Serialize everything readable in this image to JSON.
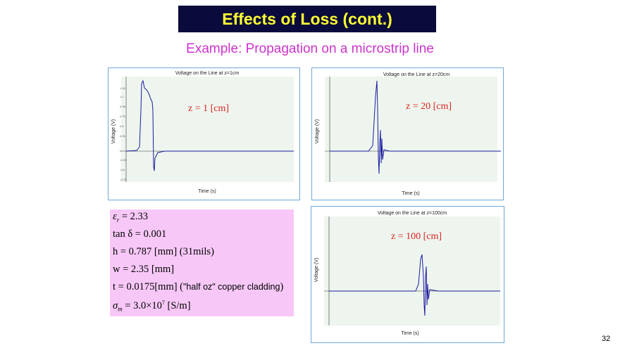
{
  "slide": {
    "title": "Effects of Loss (cont.)",
    "subtitle": "Example: Propagation on a microstrip line",
    "page_number": "32"
  },
  "plots": [
    {
      "title": "Voltage on the Line at z=1cm",
      "ylabel": "Voltage (V)",
      "xlabel": "Time (s)",
      "z_label": "z = 1 [cm]",
      "color": "#1a1aa0"
    },
    {
      "title": "Voltage on the Line at z=20cm",
      "ylabel": "Voltage (V)",
      "xlabel": "Time (s)",
      "z_label": "z = 20 [cm]",
      "color": "#1a1aa0"
    },
    {
      "title": "Voltage on the Line at z=100cm",
      "ylabel": "Voltage (V)",
      "xlabel": "Time (s)",
      "z_label": "z = 100 [cm]",
      "color": "#1a1aa0"
    }
  ],
  "parameters": {
    "er": "ε",
    "er_sub": "r",
    "er_val": " = 2.33",
    "tand": "tan δ = 0.001",
    "h": "h = 0.787 [mm] (31mils)",
    "w": "w = 2.35 [mm]",
    "t_main": "t = 0.0175[mm] (",
    "t_note": "\"half oz\" copper cladding",
    "t_end": ")",
    "sigma": "σ",
    "sigma_sub": "m",
    "sigma_val": " = 3.0×10",
    "sigma_exp": "7",
    "sigma_unit": " [S/m]"
  },
  "colors": {
    "title_bg": "#0a0a3c",
    "title_text": "#ffff33",
    "subtitle": "#cc33cc",
    "plot_border": "#6fa7d8",
    "plot_bg": "#eef5ee",
    "params_bg": "#f7c8f7",
    "z_label": "#dd2222"
  }
}
